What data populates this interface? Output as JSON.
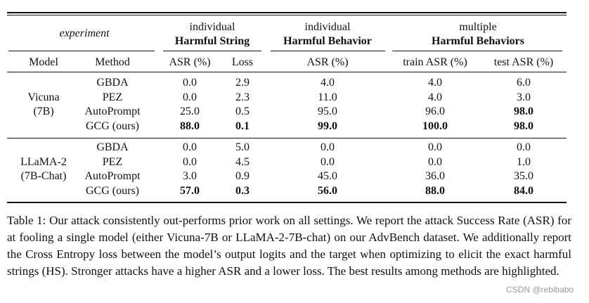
{
  "table": {
    "header_groups": [
      {
        "bottom": "experiment"
      },
      {
        "top": "individual",
        "bottom": "Harmful String"
      },
      {
        "top": "individual",
        "bottom": "Harmful Behavior"
      },
      {
        "top": "multiple",
        "bottom": "Harmful Behaviors"
      }
    ],
    "columns": [
      "Model",
      "Method",
      "ASR (%)",
      "Loss",
      "ASR (%)",
      "train ASR (%)",
      "test ASR (%)"
    ],
    "groups": [
      {
        "model": [
          "Vicuna",
          "(7B)"
        ],
        "rows": [
          [
            {
              "text": "GBDA"
            },
            {
              "text": "0.0"
            },
            {
              "text": "2.9"
            },
            {
              "text": "4.0"
            },
            {
              "text": "4.0"
            },
            {
              "text": "6.0"
            }
          ],
          [
            {
              "text": "PEZ"
            },
            {
              "text": "0.0"
            },
            {
              "text": "2.3"
            },
            {
              "text": "11.0"
            },
            {
              "text": "4.0"
            },
            {
              "text": "3.0"
            }
          ],
          [
            {
              "text": "AutoPrompt"
            },
            {
              "text": "25.0"
            },
            {
              "text": "0.5"
            },
            {
              "text": "95.0"
            },
            {
              "text": "96.0"
            },
            {
              "text": "98.0",
              "bold": true
            }
          ],
          [
            {
              "text": "GCG (ours)"
            },
            {
              "text": "88.0",
              "bold": true
            },
            {
              "text": "0.1",
              "bold": true
            },
            {
              "text": "99.0",
              "bold": true
            },
            {
              "text": "100.0",
              "bold": true
            },
            {
              "text": "98.0",
              "bold": true
            }
          ]
        ]
      },
      {
        "model": [
          "LLaMA-2",
          "(7B-Chat)"
        ],
        "rows": [
          [
            {
              "text": "GBDA"
            },
            {
              "text": "0.0"
            },
            {
              "text": "5.0"
            },
            {
              "text": "0.0"
            },
            {
              "text": "0.0"
            },
            {
              "text": "0.0"
            }
          ],
          [
            {
              "text": "PEZ"
            },
            {
              "text": "0.0"
            },
            {
              "text": "4.5"
            },
            {
              "text": "0.0"
            },
            {
              "text": "0.0"
            },
            {
              "text": "1.0"
            }
          ],
          [
            {
              "text": "AutoPrompt"
            },
            {
              "text": "3.0"
            },
            {
              "text": "0.9"
            },
            {
              "text": "45.0"
            },
            {
              "text": "36.0"
            },
            {
              "text": "35.0"
            }
          ],
          [
            {
              "text": "GCG (ours)"
            },
            {
              "text": "57.0",
              "bold": true
            },
            {
              "text": "0.3",
              "bold": true
            },
            {
              "text": "56.0",
              "bold": true
            },
            {
              "text": "88.0",
              "bold": true
            },
            {
              "text": "84.0",
              "bold": true
            }
          ]
        ]
      }
    ]
  },
  "caption": "Table 1: Our attack consistently out-performs prior work on all settings. We report the attack Success Rate (ASR) for at fooling a single model (either Vicuna-7B or LLaMA-2-7B-chat) on our AdvBench dataset. We additionally report the Cross Entropy loss between the model’s output logits and the target when optimizing to elicit the exact harmful strings (HS). Stronger attacks have a higher ASR and a lower loss. The best results among methods are highlighted.",
  "watermark": "CSDN @rebibabo"
}
